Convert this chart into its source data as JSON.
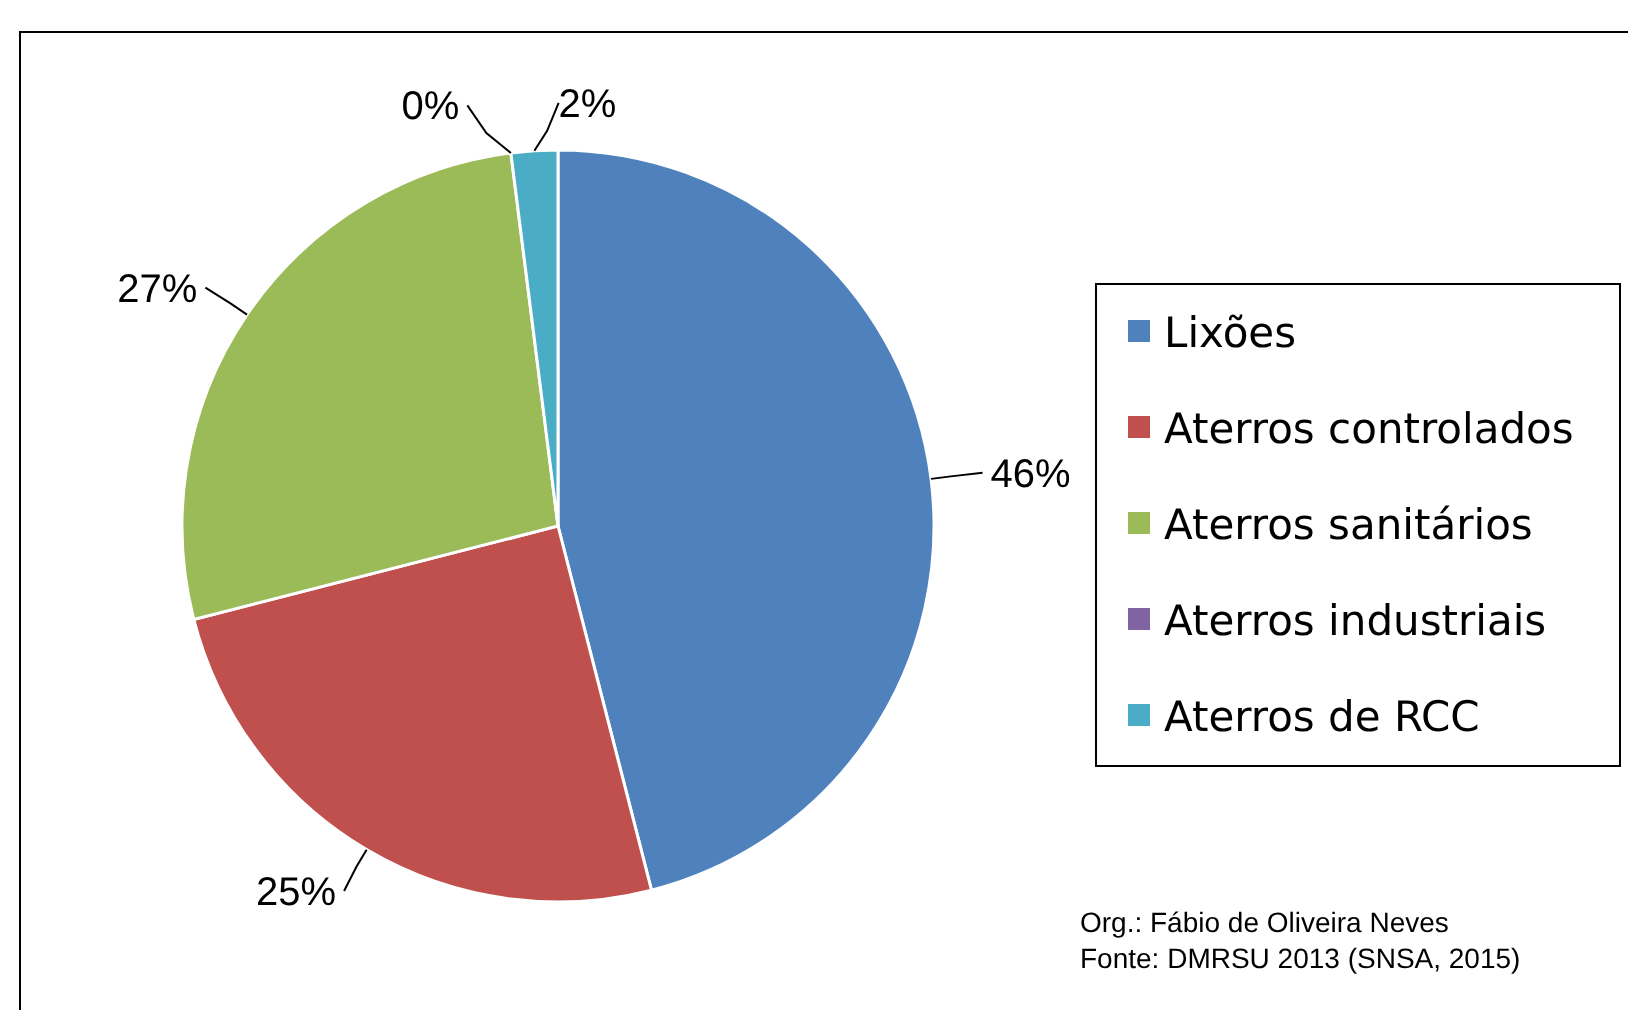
{
  "chart_data": {
    "type": "pie",
    "categories": [
      "Lixões",
      "Aterros controlados",
      "Aterros sanitários",
      "Aterros industriais",
      "Aterros de RCC"
    ],
    "values": [
      46,
      25,
      27,
      0,
      2
    ],
    "colors": [
      "#4f81bd",
      "#c0504d",
      "#9bbb59",
      "#8064a2",
      "#4bacc6"
    ],
    "value_labels": [
      "46%",
      "25%",
      "27%",
      "0%",
      "2%"
    ],
    "legend": "right",
    "annotations": [
      "Org.: Fábio de Oliveira Neves",
      "Fonte: DMRSU 2013 (SNSA, 2015)"
    ]
  }
}
